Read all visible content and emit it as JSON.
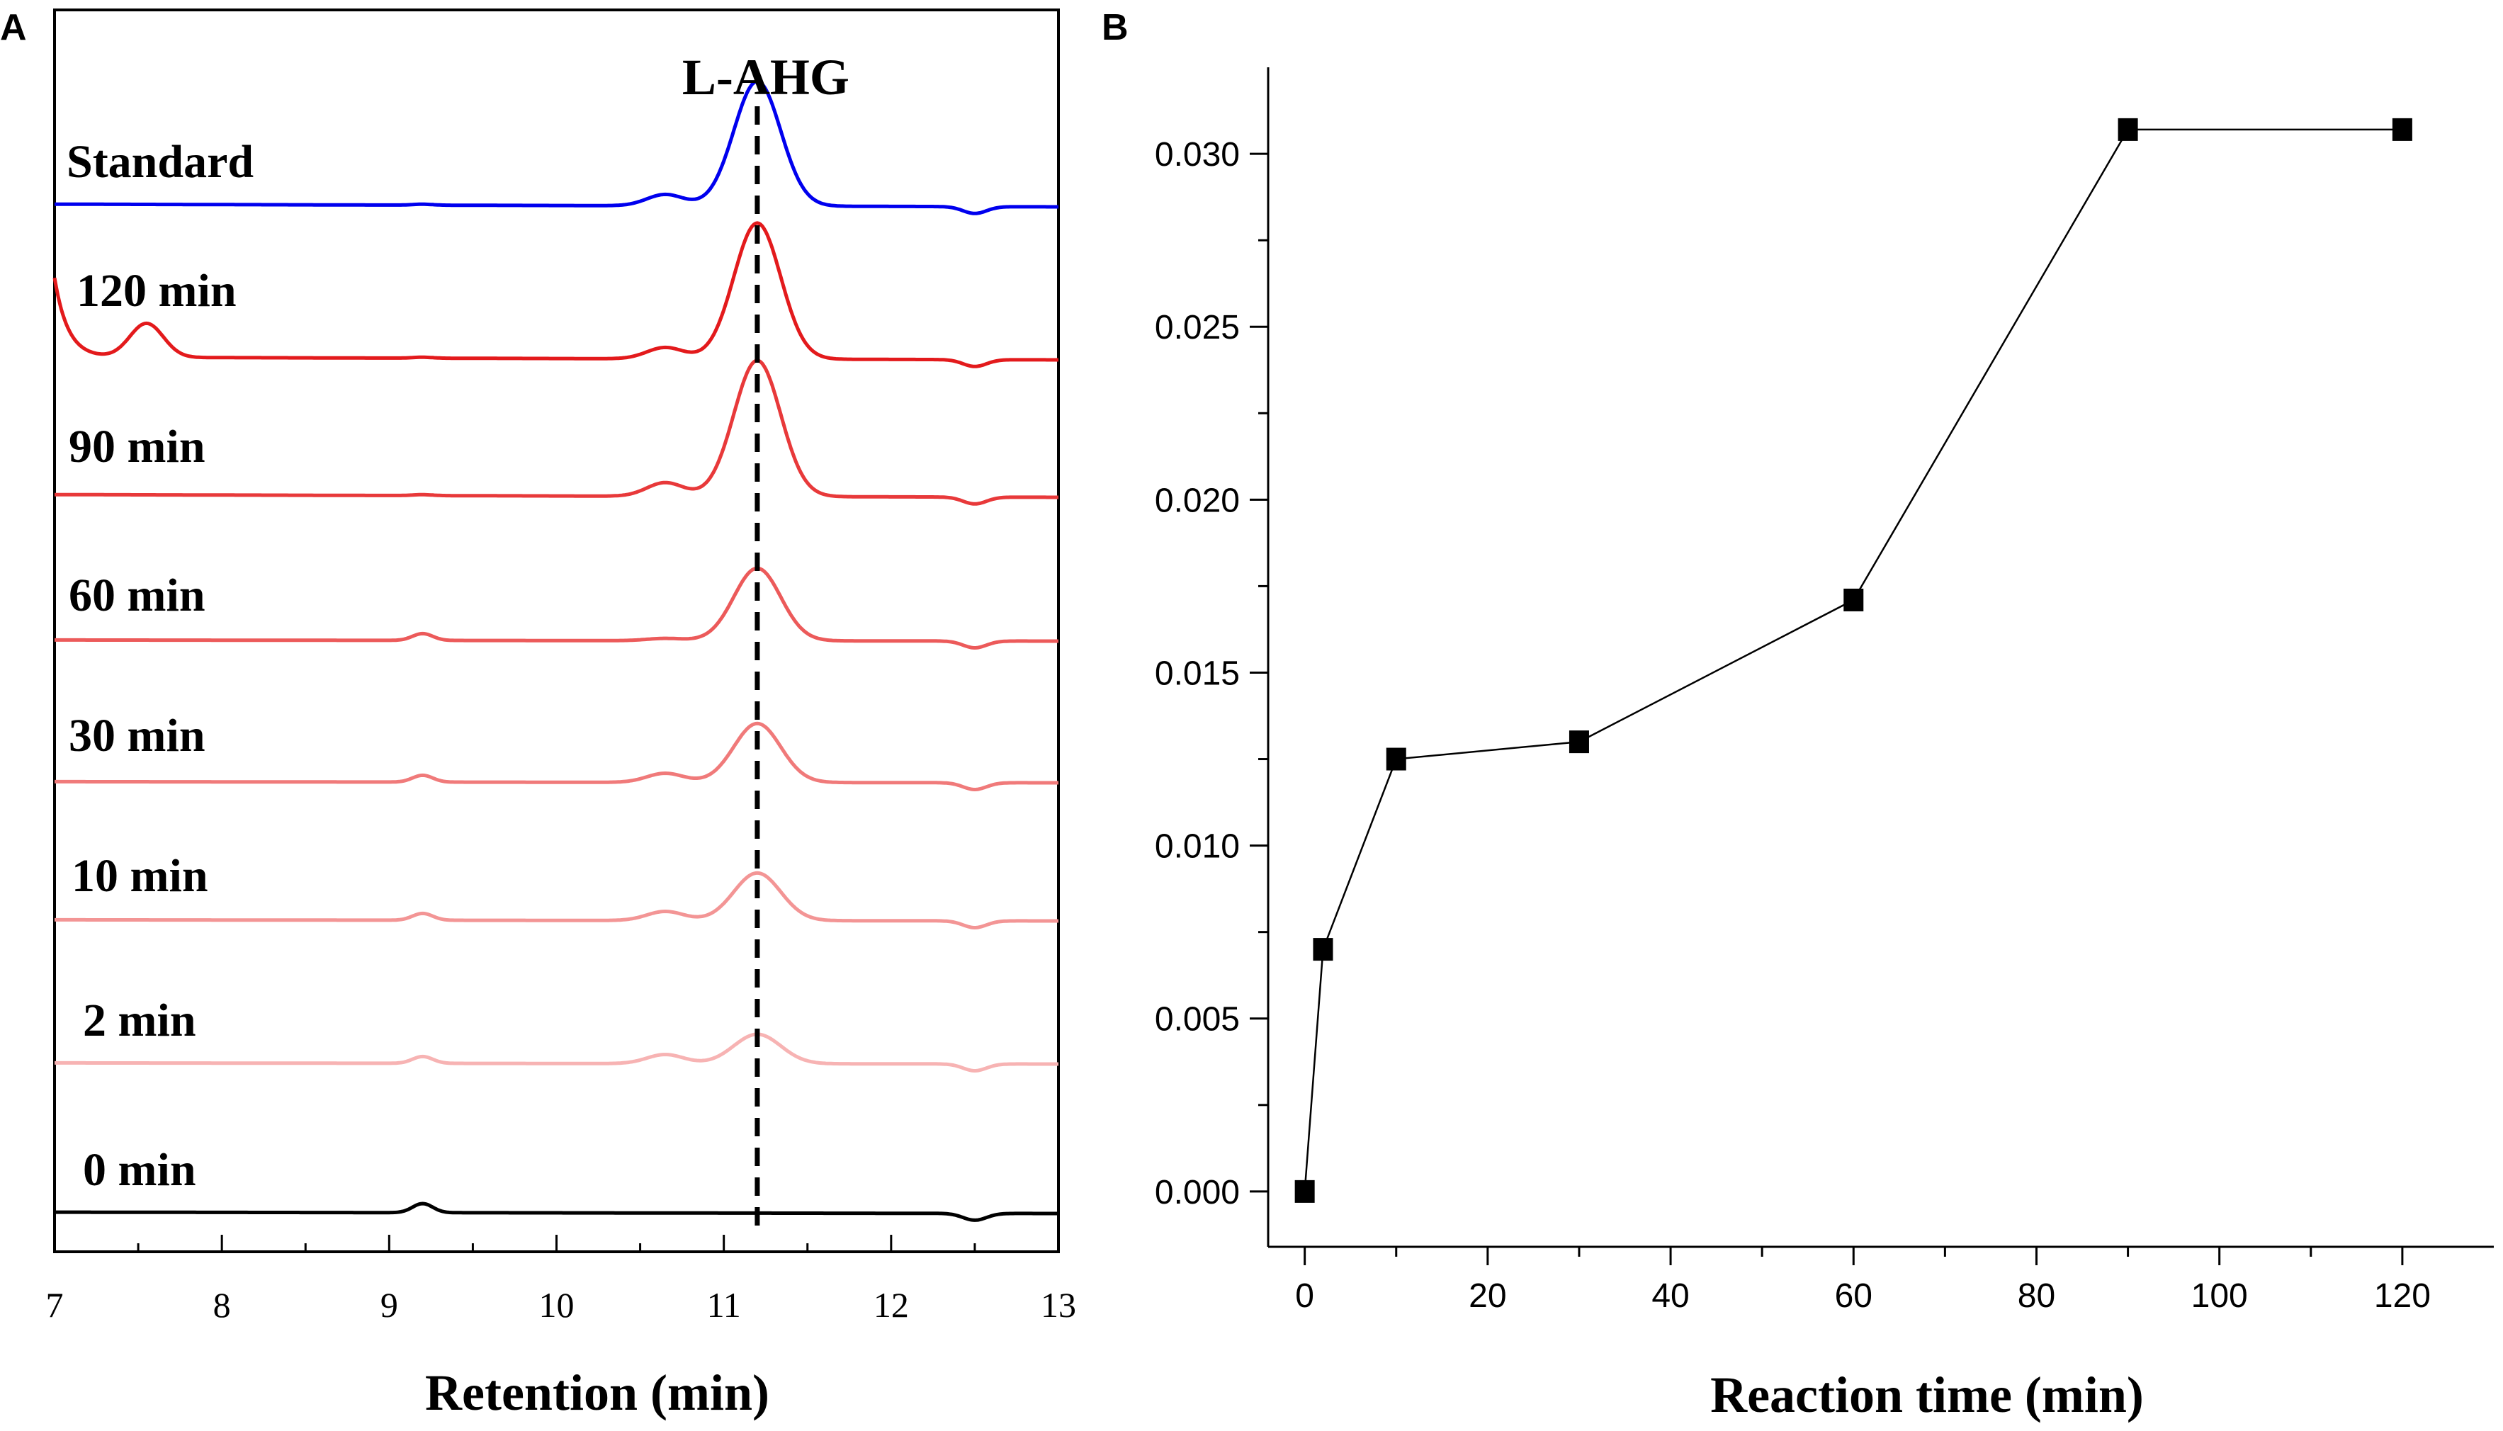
{
  "panels": {
    "a_letter": "A",
    "b_letter": "B"
  },
  "chart_data": [
    {
      "type": "line",
      "panel": "A",
      "title": "",
      "xlabel": "Retention (min)",
      "ylabel": "",
      "xlim": [
        7,
        13
      ],
      "xticks": [
        7,
        8,
        9,
        10,
        11,
        12,
        13
      ],
      "reference_line": {
        "x": 11.2,
        "label": "L-AHG",
        "style": "dashed"
      },
      "series": [
        {
          "name": "Standard",
          "color": "#0000ee",
          "peak_height": 0.55,
          "early_peak": 0,
          "minor_bump": 0.004,
          "hump": 0.05,
          "slope": 0.012
        },
        {
          "name": "120 min",
          "color": "#e31a1c",
          "peak_height": 0.6,
          "early_peak": 0.15,
          "minor_bump": 0.004,
          "hump": 0.05,
          "slope": 0.012
        },
        {
          "name": "90 min",
          "color": "#e8393a",
          "peak_height": 0.6,
          "early_peak": 0,
          "minor_bump": 0.004,
          "hump": 0.06,
          "slope": 0.012
        },
        {
          "name": "60 min",
          "color": "#ec5a5a",
          "peak_height": 0.32,
          "early_peak": 0,
          "minor_bump": 0.03,
          "hump": 0.01,
          "slope": 0.005
        },
        {
          "name": "30 min",
          "color": "#f07a7a",
          "peak_height": 0.26,
          "early_peak": 0,
          "minor_bump": 0.03,
          "hump": 0.04,
          "slope": 0.005
        },
        {
          "name": "10 min",
          "color": "#f39595",
          "peak_height": 0.21,
          "early_peak": 0,
          "minor_bump": 0.03,
          "hump": 0.04,
          "slope": 0.005
        },
        {
          "name": "2 min",
          "color": "#f7b3b3",
          "peak_height": 0.13,
          "early_peak": 0,
          "minor_bump": 0.03,
          "hump": 0.04,
          "slope": 0.005
        },
        {
          "name": "0 min",
          "color": "#000000",
          "peak_height": 0,
          "early_peak": 0,
          "minor_bump": 0.04,
          "hump": 0,
          "slope": 0.006
        }
      ]
    },
    {
      "type": "line",
      "panel": "B",
      "title": "",
      "xlabel": "Reaction time (min)",
      "ylabel": "",
      "xlim": [
        -4,
        130
      ],
      "ylim": [
        -0.0016,
        0.0325
      ],
      "xticks": [
        0,
        20,
        40,
        60,
        80,
        100,
        120
      ],
      "yticks": [
        "0.000",
        "0.005",
        "0.010",
        "0.015",
        "0.020",
        "0.025",
        "0.030"
      ],
      "marker": "square",
      "x": [
        0,
        2,
        10,
        30,
        60,
        90,
        120
      ],
      "y": [
        0.0,
        0.007,
        0.0125,
        0.013,
        0.0171,
        0.0307,
        0.0307
      ]
    }
  ]
}
